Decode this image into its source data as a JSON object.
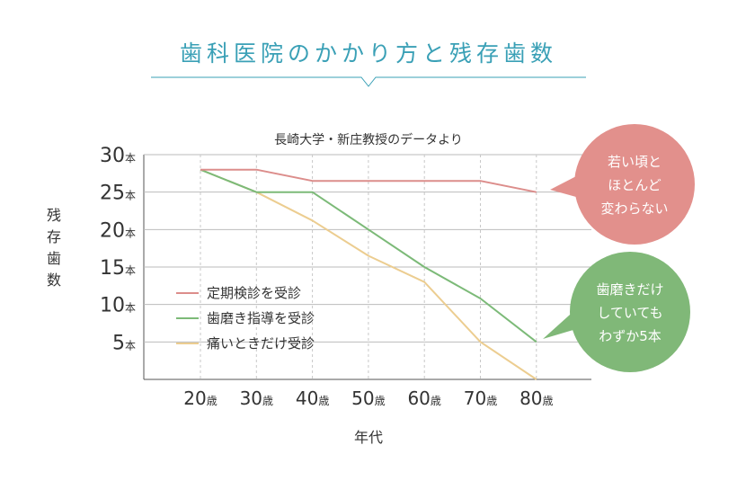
{
  "title": "歯科医院のかかり方と残存歯数",
  "chart_data": {
    "type": "line",
    "subtitle": "長崎大学・新庄教授のデータより",
    "xlabel": "年代",
    "ylabel": "残存歯数",
    "y_unit": "本",
    "x_unit": "歳",
    "x": [
      20,
      30,
      40,
      50,
      60,
      70,
      80
    ],
    "x_tick_labels": [
      "20",
      "30",
      "40",
      "50",
      "60",
      "70",
      "80"
    ],
    "y_ticks": [
      5,
      10,
      15,
      20,
      25,
      30
    ],
    "ylim": [
      0,
      30
    ],
    "grid": true,
    "legend_position": "bottom-left",
    "series": [
      {
        "name": "定期検診を受診",
        "color": "#dc8d8b",
        "values": [
          28,
          28,
          26.5,
          26.5,
          26.5,
          26.5,
          25
        ]
      },
      {
        "name": "歯磨き指導を受診",
        "color": "#7cba78",
        "values": [
          28,
          25,
          25,
          20,
          15,
          10.8,
          5
        ]
      },
      {
        "name": "痛いときだけ受診",
        "color": "#eccd90",
        "values": [
          28,
          25,
          21.2,
          16.5,
          13,
          5,
          0
        ]
      }
    ],
    "annotations": [
      {
        "series": 0,
        "color": "#e2908c",
        "lines": [
          "若い頃と",
          "ほとんど",
          "変わらない"
        ]
      },
      {
        "series": 1,
        "color": "#80b878",
        "lines": [
          "歯磨きだけ",
          "していても",
          "わずか5本"
        ]
      }
    ]
  }
}
